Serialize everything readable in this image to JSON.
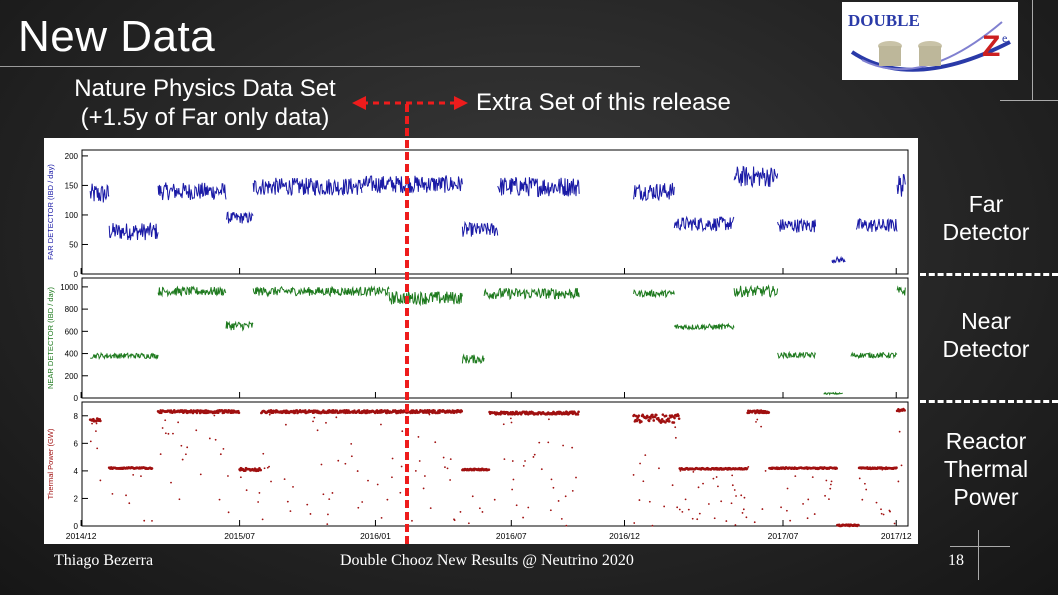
{
  "slide": {
    "title": "New Data",
    "left_label_line1": "Nature Physics Data Set",
    "left_label_line2": "(+1.5y of Far only data)",
    "right_label": "Extra Set of this release",
    "far_label_1": "Far",
    "far_label_2": "Detector",
    "near_label_1": "Near",
    "near_label_2": "Detector",
    "reactor_label_1": "Reactor",
    "reactor_label_2": "Thermal",
    "reactor_label_3": "Power",
    "footer_author": "Thiago Bezerra",
    "footer_center": "Double Chooz New Results @ Neutrino 2020",
    "page_number": "18",
    "logo_text": "DOUBLE",
    "logo_letter": "Z",
    "logo_sub": "e"
  },
  "colors": {
    "far": "#1a1aa6",
    "near": "#1e7a1e",
    "reactor": "#a01010",
    "divider": "#ee1c1c"
  },
  "chart_data": [
    {
      "type": "scatter",
      "ylabel": "FAR DETECTOR (IBD / day)",
      "ylim": [
        0,
        210
      ],
      "yticks": [
        0,
        50,
        100,
        150,
        200
      ],
      "series": [
        {
          "color": "#1a1aa6",
          "segments": [
            [
              2014.95,
              2015.02,
              135,
              18
            ],
            [
              2015.02,
              2015.2,
              72,
              15
            ],
            [
              2015.2,
              2015.45,
              140,
              15
            ],
            [
              2015.45,
              2015.55,
              95,
              10
            ],
            [
              2015.55,
              2015.95,
              148,
              15
            ],
            [
              2015.95,
              2016.32,
              152,
              15
            ],
            [
              2016.32,
              2016.45,
              75,
              12
            ],
            [
              2016.45,
              2016.75,
              148,
              17
            ],
            [
              2016.95,
              2017.1,
              140,
              15
            ],
            [
              2017.1,
              2017.32,
              85,
              12
            ],
            [
              2017.32,
              2017.48,
              165,
              18
            ],
            [
              2017.48,
              2017.62,
              82,
              12
            ],
            [
              2017.68,
              2017.73,
              24,
              5
            ],
            [
              2017.77,
              2017.92,
              82,
              12
            ],
            [
              2017.92,
              2017.95,
              150,
              20
            ]
          ]
        }
      ]
    },
    {
      "type": "scatter",
      "ylabel": "NEAR DETECTOR (IBD / day)",
      "ylim": [
        0,
        1080
      ],
      "yticks": [
        0,
        200,
        400,
        600,
        800,
        1000
      ],
      "series": [
        {
          "color": "#1e7a1e",
          "segments": [
            [
              2014.95,
              2015.2,
              380,
              25
            ],
            [
              2015.2,
              2015.45,
              960,
              40
            ],
            [
              2015.45,
              2015.55,
              650,
              40
            ],
            [
              2015.55,
              2016.05,
              960,
              40
            ],
            [
              2016.05,
              2016.32,
              900,
              60
            ],
            [
              2016.32,
              2016.4,
              350,
              40
            ],
            [
              2016.4,
              2016.75,
              940,
              50
            ],
            [
              2016.95,
              2017.1,
              940,
              30
            ],
            [
              2017.1,
              2017.32,
              640,
              25
            ],
            [
              2017.32,
              2017.48,
              960,
              50
            ],
            [
              2017.48,
              2017.62,
              385,
              25
            ],
            [
              2017.65,
              2017.72,
              40,
              8
            ],
            [
              2017.75,
              2017.92,
              385,
              25
            ],
            [
              2017.92,
              2017.95,
              960,
              40
            ]
          ]
        }
      ]
    },
    {
      "type": "scatter",
      "ylabel": "Thermal Power (GW)",
      "ylim": [
        0,
        9
      ],
      "yticks": [
        0,
        2,
        4,
        6,
        8
      ],
      "xticks": [
        "2014/12",
        "2015/07",
        "2016/01",
        "2016/07",
        "2016/12",
        "2017/07",
        "2017/12"
      ],
      "xlim": [
        2014.92,
        2017.96
      ],
      "series": [
        {
          "color": "#a01010",
          "segments": [
            [
              2014.95,
              2014.99,
              7.7,
              0.1
            ],
            [
              2015.02,
              2015.18,
              4.2,
              0.05
            ],
            [
              2015.2,
              2015.5,
              8.3,
              0.1
            ],
            [
              2015.5,
              2015.58,
              4.1,
              0.1
            ],
            [
              2015.58,
              2016.32,
              8.3,
              0.1
            ],
            [
              2016.32,
              2016.42,
              4.1,
              0.05
            ],
            [
              2016.42,
              2016.75,
              8.2,
              0.1
            ],
            [
              2016.95,
              2017.12,
              7.8,
              0.3
            ],
            [
              2017.12,
              2017.37,
              4.15,
              0.05
            ],
            [
              2017.37,
              2017.45,
              8.3,
              0.1
            ],
            [
              2017.45,
              2017.7,
              4.2,
              0.05
            ],
            [
              2017.7,
              2017.78,
              0.05,
              0.05
            ],
            [
              2017.78,
              2017.92,
              4.2,
              0.05
            ],
            [
              2017.92,
              2017.95,
              8.4,
              0.1
            ]
          ]
        }
      ]
    }
  ]
}
